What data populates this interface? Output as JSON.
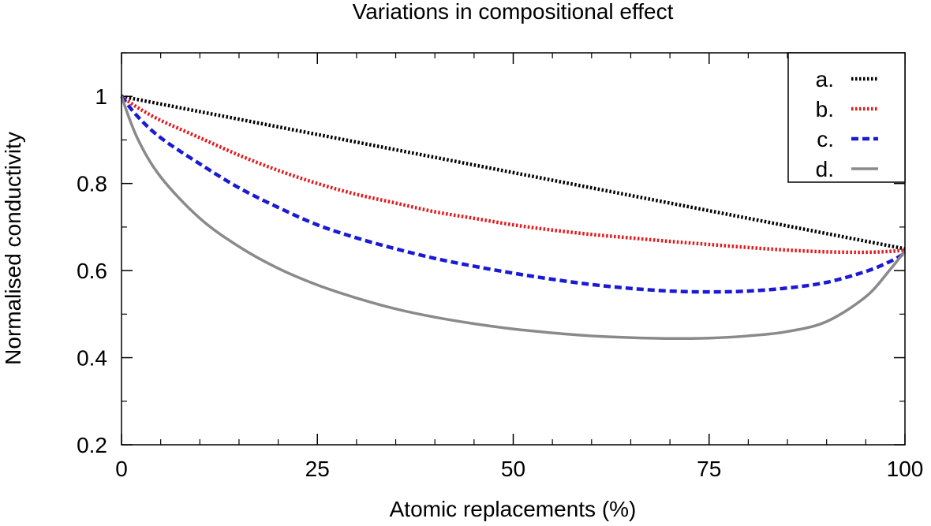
{
  "chart_data": {
    "type": "line",
    "title": "Variations in compositional effect",
    "xlabel": "Atomic replacements (%)",
    "ylabel": "Normalised conductivity",
    "xlim": [
      0,
      100
    ],
    "ylim": [
      0.2,
      1.1
    ],
    "xticks": [
      0,
      25,
      50,
      75,
      100
    ],
    "xtick_labels": [
      "0",
      "25",
      "50",
      "75",
      "100"
    ],
    "xminor_step": 5,
    "yticks": [
      0.2,
      0.4,
      0.6,
      0.8,
      1.0
    ],
    "ytick_labels": [
      "0.2",
      "0.4",
      "0.6",
      "0.8",
      "1"
    ],
    "yminor_step": 0.1,
    "grid": false,
    "legend_position": "top-right",
    "x": [
      0,
      2,
      5,
      10,
      15,
      20,
      25,
      30,
      35,
      40,
      45,
      50,
      55,
      60,
      65,
      70,
      75,
      80,
      85,
      90,
      95,
      98,
      100
    ],
    "series": [
      {
        "name": "a.",
        "color": "#000000",
        "style": "dotted",
        "values": [
          1.0,
          0.993,
          0.9825,
          0.965,
          0.9475,
          0.93,
          0.9125,
          0.895,
          0.8775,
          0.86,
          0.8425,
          0.825,
          0.8075,
          0.79,
          0.7725,
          0.755,
          0.7375,
          0.72,
          0.7025,
          0.685,
          0.6675,
          0.657,
          0.65
        ]
      },
      {
        "name": "b.",
        "color": "#e41a1c",
        "style": "dotted",
        "values": [
          1.0,
          0.975,
          0.945,
          0.905,
          0.865,
          0.83,
          0.8,
          0.775,
          0.755,
          0.735,
          0.72,
          0.705,
          0.693,
          0.683,
          0.675,
          0.667,
          0.66,
          0.653,
          0.647,
          0.643,
          0.642,
          0.644,
          0.647
        ]
      },
      {
        "name": "c.",
        "color": "#1a1ad6",
        "style": "dashed",
        "values": [
          1.0,
          0.955,
          0.905,
          0.845,
          0.79,
          0.745,
          0.705,
          0.675,
          0.65,
          0.628,
          0.61,
          0.594,
          0.58,
          0.568,
          0.559,
          0.553,
          0.551,
          0.553,
          0.56,
          0.573,
          0.598,
          0.62,
          0.64
        ]
      },
      {
        "name": "d.",
        "color": "#8a8a8a",
        "style": "solid",
        "values": [
          1.0,
          0.905,
          0.815,
          0.72,
          0.655,
          0.605,
          0.567,
          0.537,
          0.512,
          0.493,
          0.478,
          0.466,
          0.457,
          0.45,
          0.446,
          0.444,
          0.445,
          0.45,
          0.46,
          0.483,
          0.54,
          0.6,
          0.645
        ]
      }
    ]
  }
}
